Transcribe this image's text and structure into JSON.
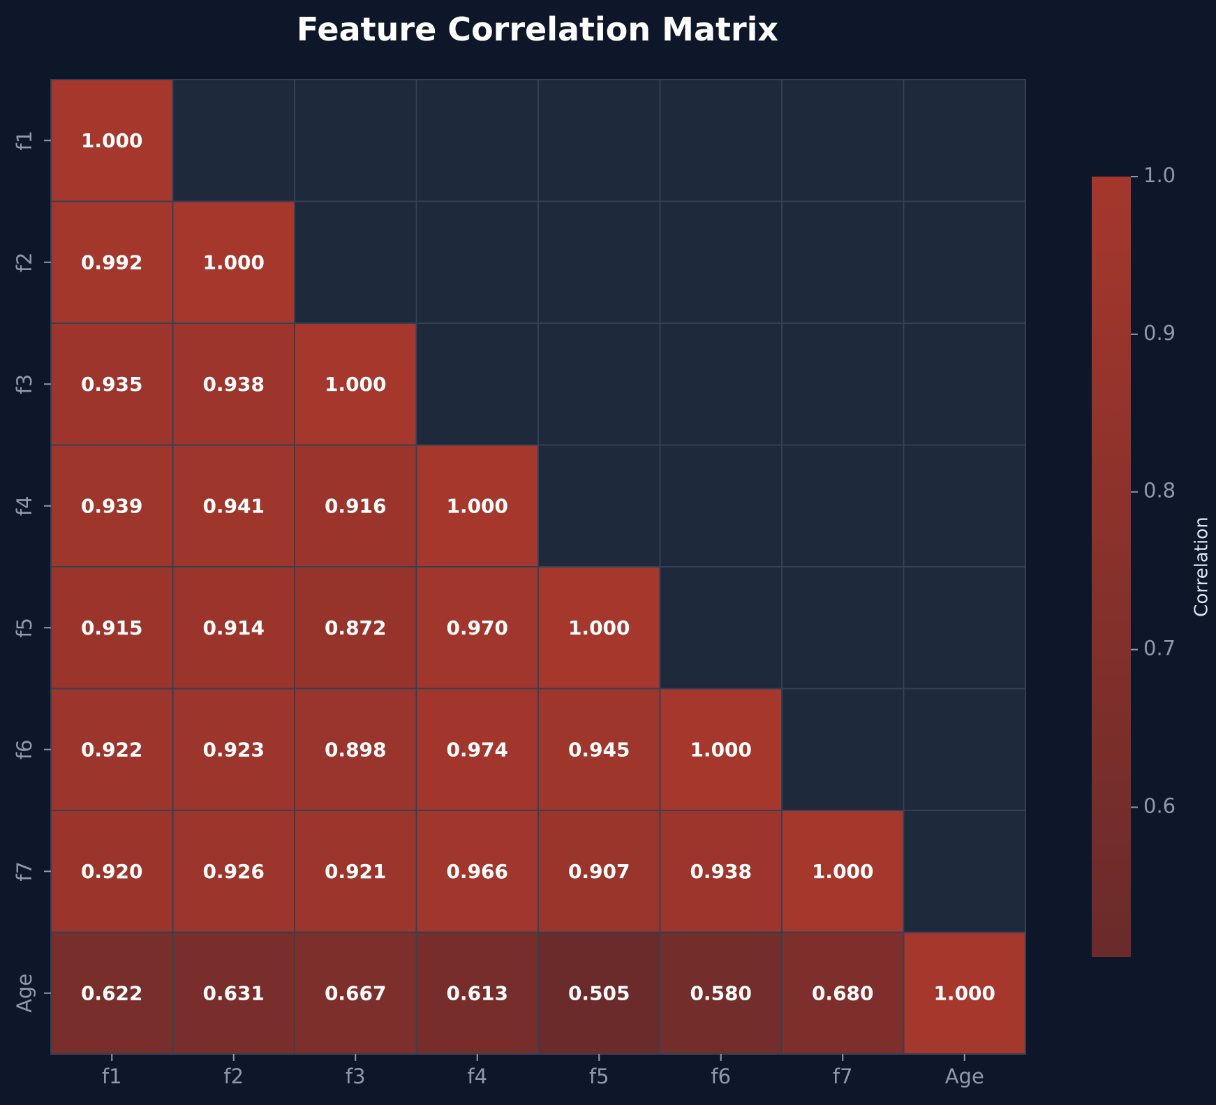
{
  "chart_data": {
    "type": "heatmap",
    "title": "Feature Correlation Matrix",
    "labels": [
      "f1",
      "f2",
      "f3",
      "f4",
      "f5",
      "f6",
      "f7",
      "Age"
    ],
    "mask": "upper-triangle",
    "matrix": [
      [
        1.0
      ],
      [
        0.992,
        1.0
      ],
      [
        0.935,
        0.938,
        1.0
      ],
      [
        0.939,
        0.941,
        0.916,
        1.0
      ],
      [
        0.915,
        0.914,
        0.872,
        0.97,
        1.0
      ],
      [
        0.922,
        0.923,
        0.898,
        0.974,
        0.945,
        1.0
      ],
      [
        0.92,
        0.926,
        0.921,
        0.966,
        0.907,
        0.938,
        1.0
      ],
      [
        0.622,
        0.631,
        0.667,
        0.613,
        0.505,
        0.58,
        0.68,
        1.0
      ]
    ],
    "value_format": "3 decimals",
    "colorbar": {
      "label": "Correlation",
      "range": [
        0.505,
        1.0
      ],
      "ticks": [
        "0.6",
        "0.7",
        "0.8",
        "0.9",
        "1.0"
      ],
      "tick_values": [
        0.6,
        0.7,
        0.8,
        0.9,
        1.0
      ],
      "color_low": "#6a2b2a",
      "color_high": "#a5372c"
    },
    "colors": {
      "background": "#0e1729",
      "masked_cell": "#1e293b",
      "grid_line": "#334155",
      "tick_text": "#8e9aab",
      "title_text": "#ffffff",
      "value_text": "#ffffff"
    }
  }
}
